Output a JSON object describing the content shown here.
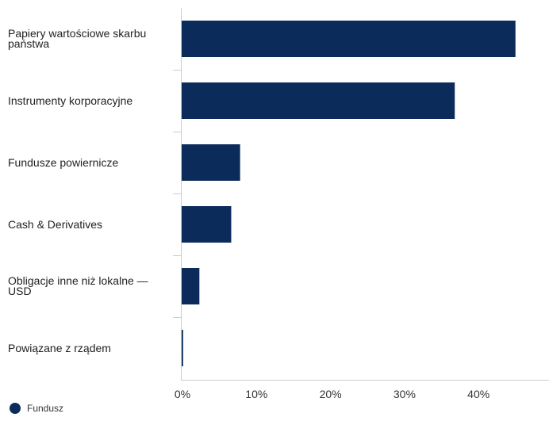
{
  "chart_data": {
    "type": "bar",
    "orientation": "horizontal",
    "categories": [
      "Papiery wartościowe skarbu państwa",
      "Instrumenty korporacyjne",
      "Fundusze powiernicze",
      "Cash & Derivatives",
      "Obligacje inne niż lokalne — USD",
      "Powiązane z rządem"
    ],
    "series": [
      {
        "name": "Fundusz",
        "values": [
          45.2,
          37.0,
          8.0,
          6.8,
          2.5,
          0.3
        ],
        "color": "#0b2b5b"
      }
    ],
    "x_ticks": [
      "0%",
      "10%",
      "20%",
      "30%",
      "40%"
    ],
    "xlim": [
      0,
      50
    ],
    "grid": false,
    "legend_position": "bottom-left"
  }
}
